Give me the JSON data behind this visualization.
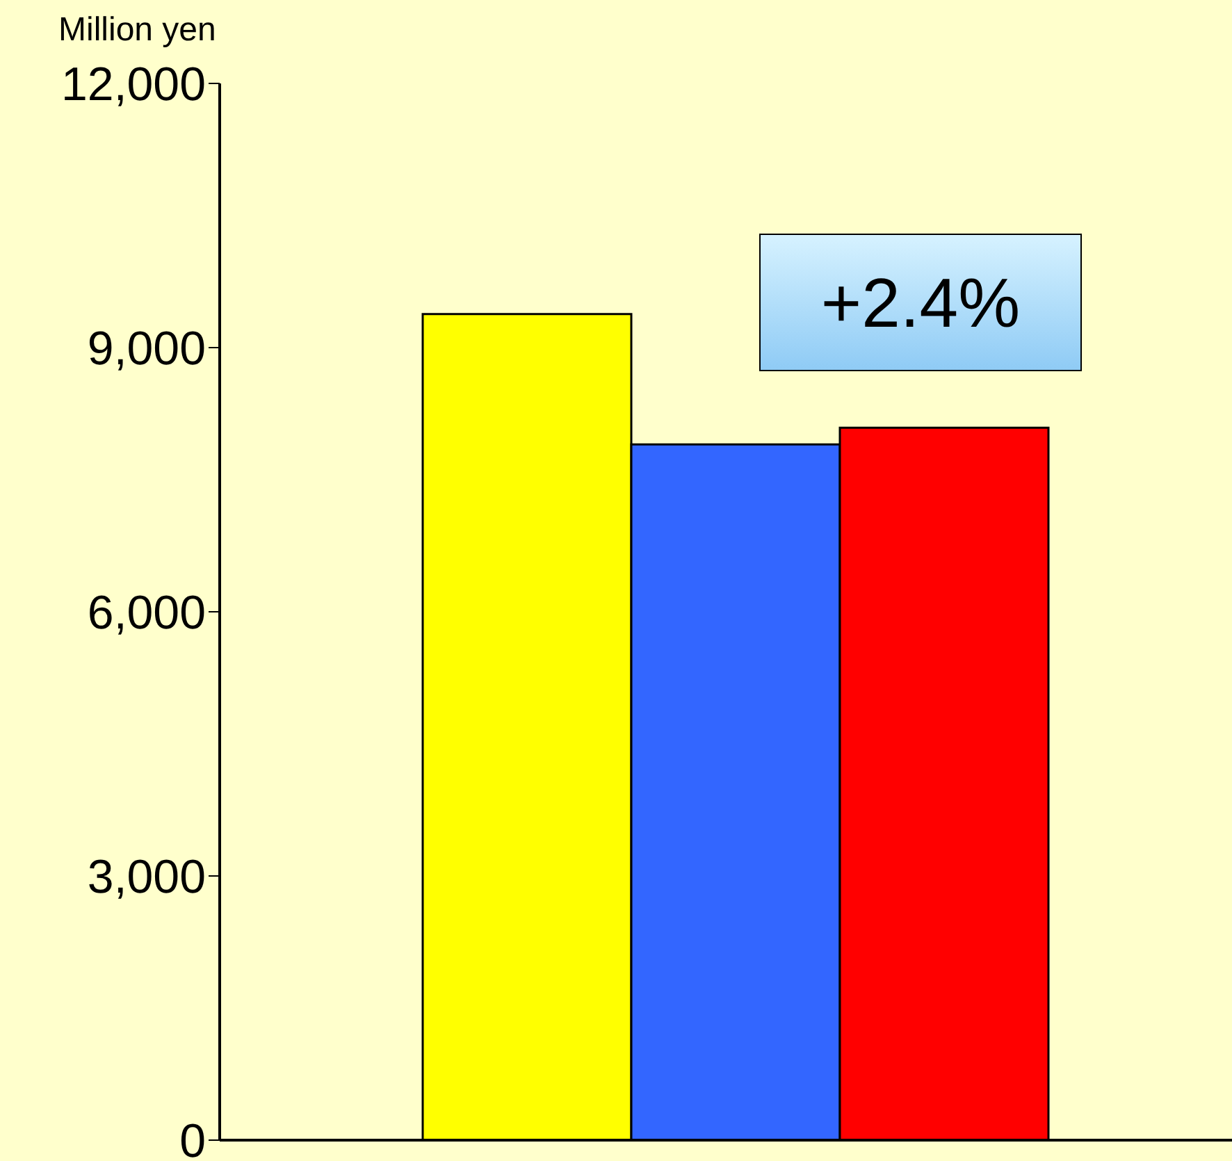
{
  "chart_data": {
    "type": "bar",
    "ylabel": "Million yen",
    "categories": [
      null
    ],
    "series": [
      {
        "color": "#ffff00",
        "values": [
          9380
        ]
      },
      {
        "color": "#3366ff",
        "values": [
          7900
        ]
      },
      {
        "color": "#ff0000",
        "values": [
          8090
        ]
      }
    ],
    "ylim": [
      0,
      12000
    ],
    "yticks": [
      0,
      {
        "value": 3000,
        "label": "3,000"
      },
      {
        "value": 6000,
        "label": "6,000"
      },
      {
        "value": 9000,
        "label": "9,000"
      },
      {
        "value": 12000,
        "label": "12,000"
      }
    ],
    "annotations": [
      "+2.4%"
    ],
    "grid": false,
    "legend": false
  }
}
